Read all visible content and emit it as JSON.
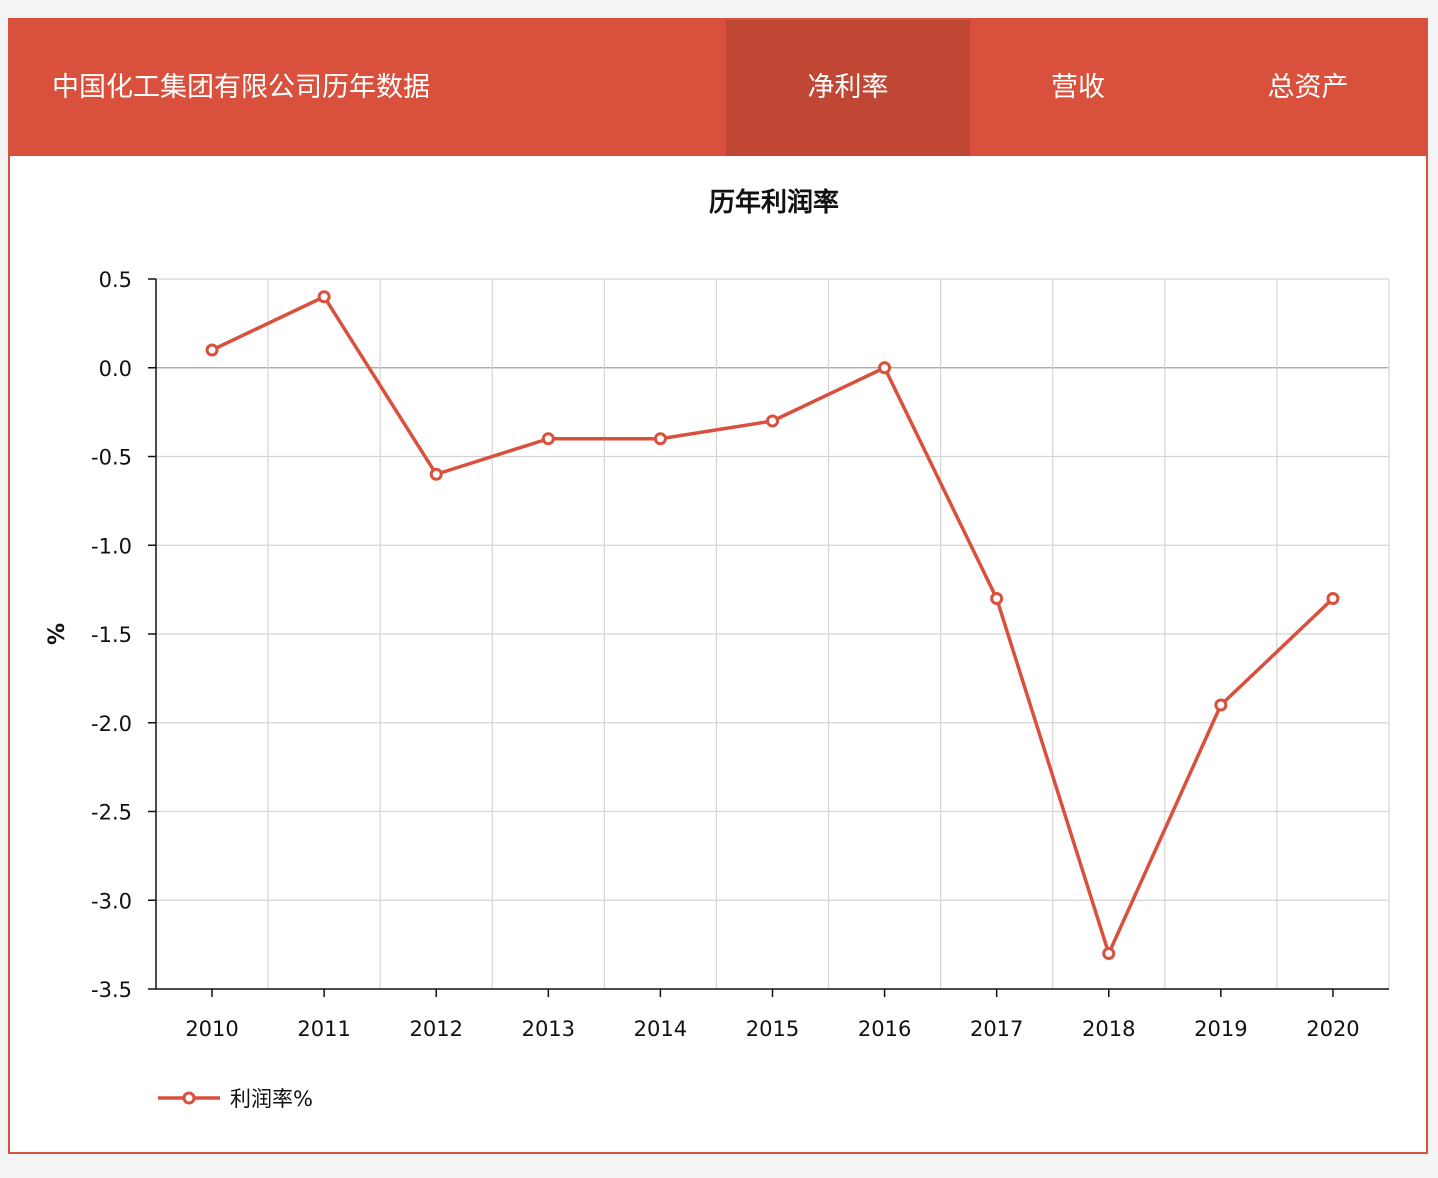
{
  "header": {
    "title": "中国化工集团有限公司历年数据",
    "tabs": [
      {
        "label": "净利率",
        "active": true
      },
      {
        "label": "营收",
        "active": false
      },
      {
        "label": "总资产",
        "active": false
      }
    ]
  },
  "colors": {
    "accent": "#d9503c",
    "accent_dark": "#c04733",
    "series": "#d9503c",
    "grid": "#d4d4d4",
    "zero_line": "#a0a0a0"
  },
  "chart_data": {
    "type": "line",
    "title": "历年利润率",
    "xlabel": "",
    "ylabel": "%",
    "categories": [
      "2010",
      "2011",
      "2012",
      "2013",
      "2014",
      "2015",
      "2016",
      "2017",
      "2018",
      "2019",
      "2020"
    ],
    "series": [
      {
        "name": "利润率%",
        "values": [
          0.1,
          0.4,
          -0.6,
          -0.4,
          -0.4,
          -0.3,
          0.0,
          -1.3,
          -3.3,
          -1.9,
          -1.3
        ]
      }
    ],
    "ylim": [
      -3.5,
      0.5
    ],
    "yticks": [
      "0.5",
      "0.0",
      "-0.5",
      "-1.0",
      "-1.5",
      "-2.0",
      "-2.5",
      "-3.0",
      "-3.5"
    ],
    "grid": true,
    "legend_position": "bottom-left"
  }
}
